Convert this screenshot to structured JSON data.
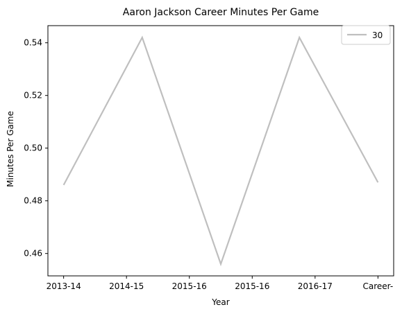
{
  "chart_data": {
    "type": "line",
    "title": "Aaron Jackson  Career Minutes Per Game",
    "xlabel": "Year",
    "ylabel": "Minutes Per Game",
    "x_tick_labels": [
      "2013-14",
      "2014-15",
      "2015-16",
      "2015-16",
      "2016-17",
      "Career-"
    ],
    "y_ticks": [
      0.46,
      0.48,
      0.5,
      0.52,
      0.54
    ],
    "y_tick_labels": [
      "0.46",
      "0.48",
      "0.50",
      "0.52",
      "0.54"
    ],
    "ylim": [
      0.4515,
      0.5465
    ],
    "grid": false,
    "legend_position": "top-right",
    "series": [
      {
        "name": "30",
        "color": "#bfbfbf",
        "x": [
          0,
          1.25,
          2.5,
          3.75,
          5
        ],
        "y": [
          0.486,
          0.542,
          0.456,
          0.542,
          0.487
        ]
      }
    ],
    "xlim": [
      -0.25,
      5.25
    ]
  }
}
